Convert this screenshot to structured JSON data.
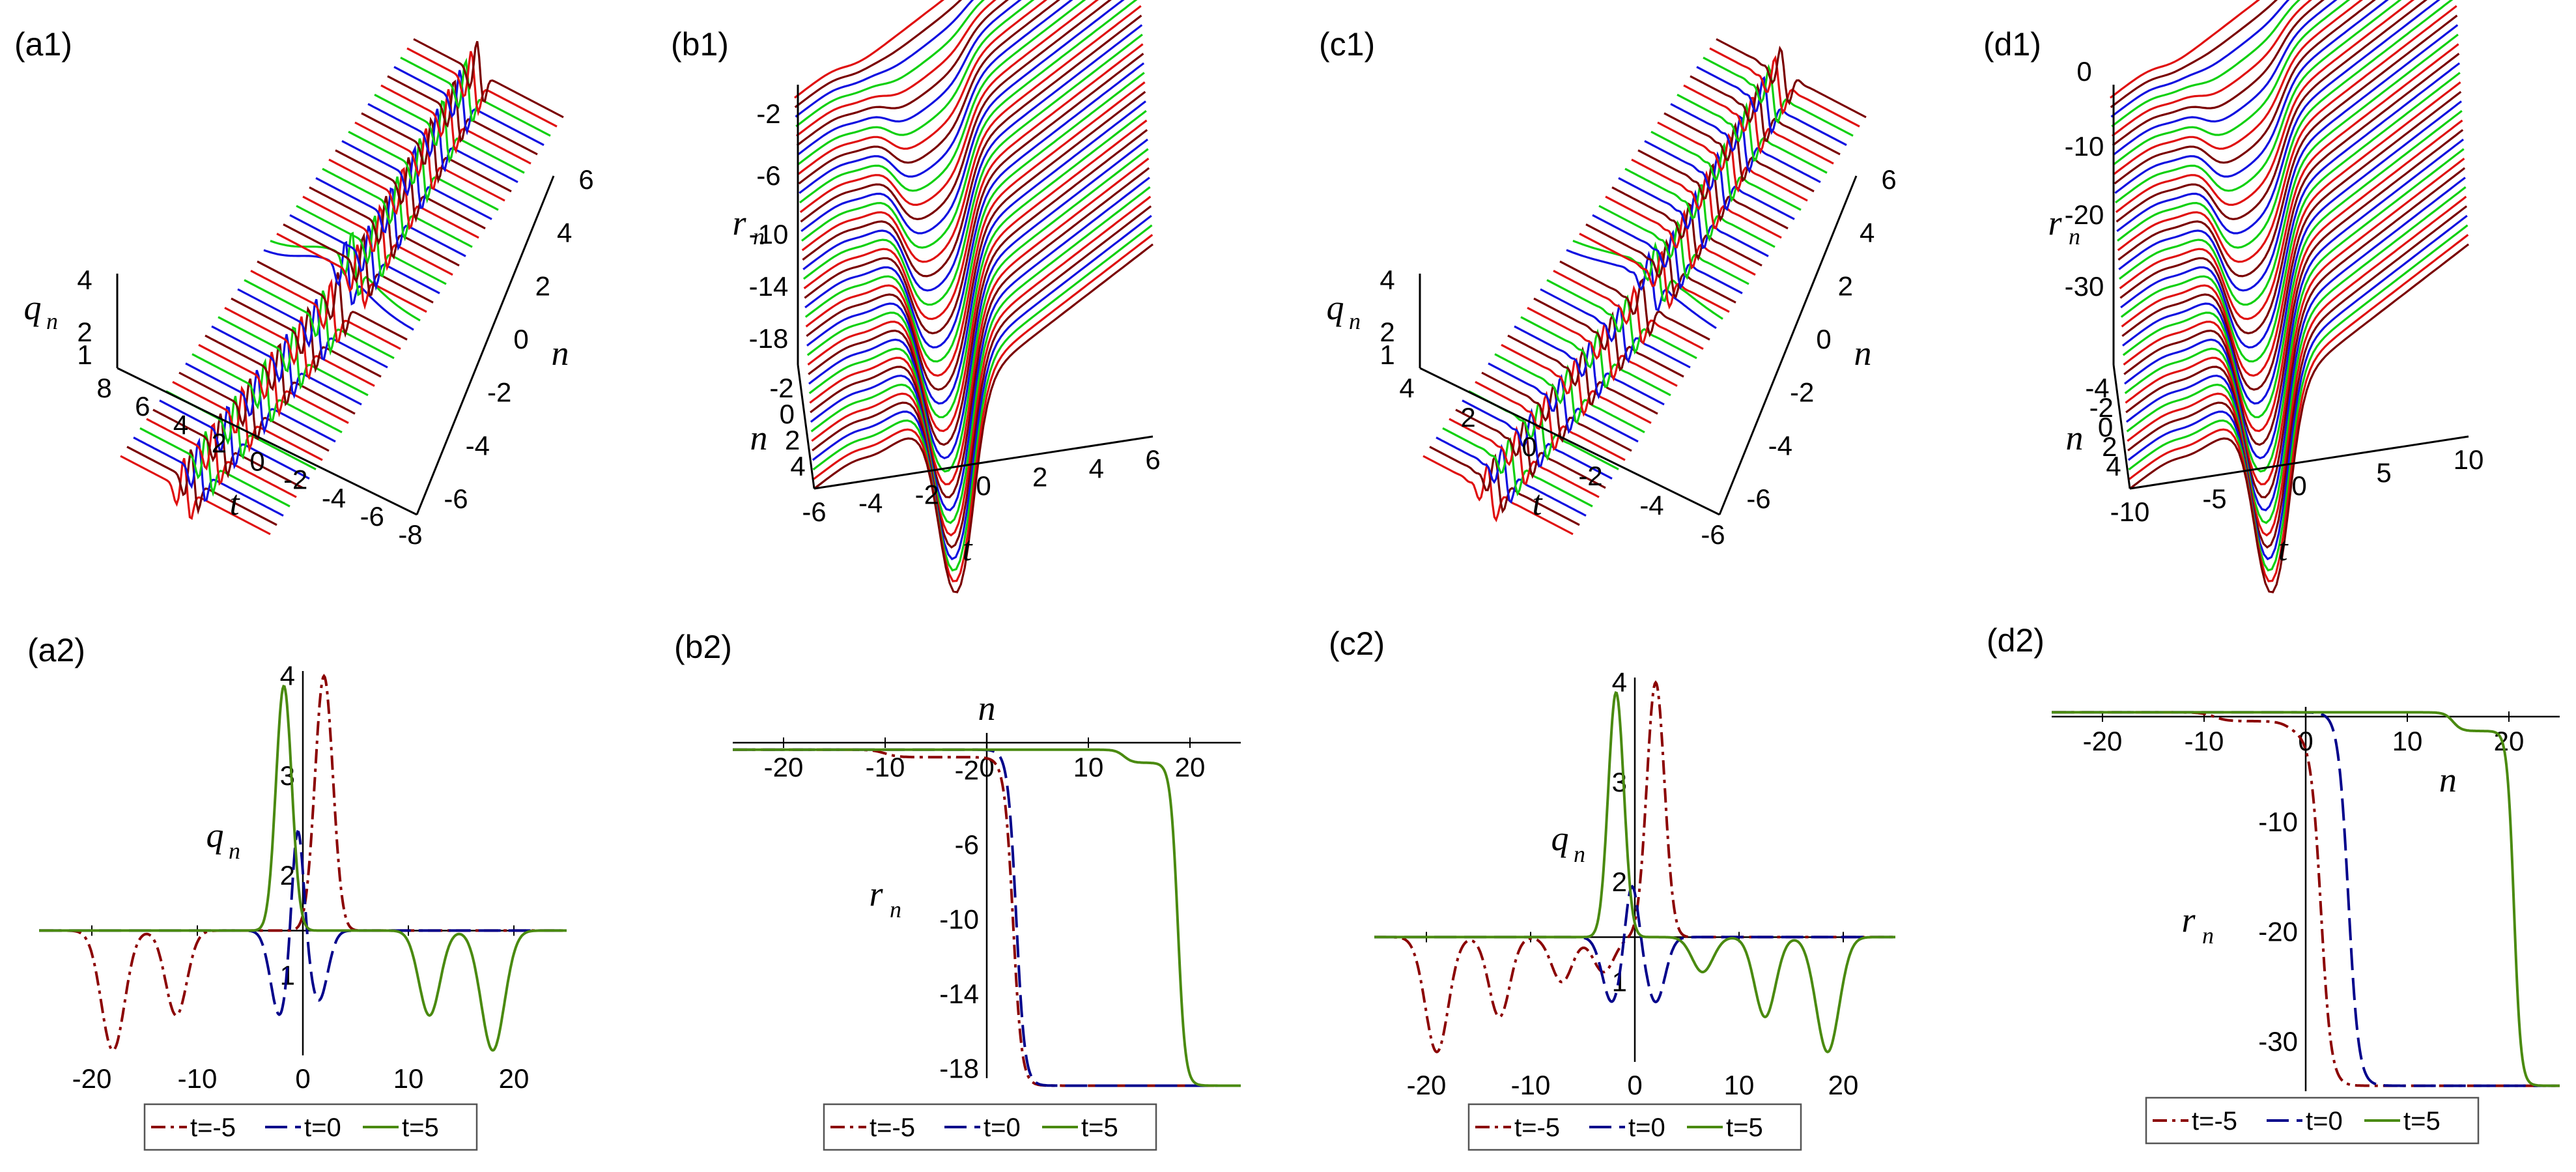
{
  "panel_labels": [
    "(a1)",
    "(b1)",
    "(c1)",
    "(d1)",
    "(a2)",
    "(b2)",
    "(c2)",
    "(d2)"
  ],
  "surface_palette": [
    "#e01010",
    "#7a0000",
    "#1010e0",
    "#10d010"
  ],
  "legend_colors": {
    "t=-5": "#8b0000",
    "t=0": "#00008b",
    "t=5": "#4a8a10"
  },
  "chart_data": [
    {
      "id": "a1",
      "type": "surface",
      "zlabel": "q",
      "zlabel_sub": "n",
      "xlabel": "t",
      "ylabel": "n",
      "z_ticks": [
        "4",
        "2",
        "1"
      ],
      "t_ticks": [
        "8",
        "6",
        "4",
        "2",
        "0",
        "-2",
        "-4",
        "-6",
        "-8"
      ],
      "n_ticks": [
        "6",
        "4",
        "2",
        "0",
        "-2",
        "-4",
        "-6"
      ]
    },
    {
      "id": "b1",
      "type": "surface",
      "zlabel": "r",
      "zlabel_sub": "n",
      "xlabel": "t",
      "ylabel": "n",
      "z_ticks": [
        "-2",
        "-6",
        "-10",
        "-14",
        "-18"
      ],
      "n_ticks": [
        "-2",
        "0",
        "2",
        "4"
      ],
      "t_ticks": [
        "-6",
        "-4",
        "-2",
        "0",
        "2",
        "4",
        "6"
      ]
    },
    {
      "id": "c1",
      "type": "surface",
      "zlabel": "q",
      "zlabel_sub": "n",
      "xlabel": "t",
      "ylabel": "n",
      "z_ticks": [
        "4",
        "2",
        "1"
      ],
      "t_ticks": [
        "4",
        "2",
        "0",
        "-2",
        "-4",
        "-6"
      ],
      "n_ticks": [
        "6",
        "4",
        "2",
        "0",
        "-2",
        "-4",
        "-6"
      ]
    },
    {
      "id": "d1",
      "type": "surface",
      "zlabel": "r",
      "zlabel_sub": "n",
      "xlabel": "t",
      "ylabel": "n",
      "z_ticks": [
        "0",
        "-10",
        "-20",
        "-30"
      ],
      "n_ticks": [
        "-4",
        "-2",
        "0",
        "2",
        "4"
      ],
      "t_ticks": [
        "-10",
        "-5",
        "0",
        "5",
        "10"
      ]
    },
    {
      "id": "a2",
      "type": "line",
      "xlabel": "n",
      "ylabel": "q",
      "ylabel_sub": "n",
      "xlim": [
        -25,
        25
      ],
      "ylim": [
        0.2,
        4.05
      ],
      "x_ticks": [
        "-20",
        "-10",
        "0",
        "10",
        "20"
      ],
      "y_ticks": [
        {
          "v": 4,
          "t": "4"
        },
        {
          "v": 3,
          "t": "3"
        },
        {
          "v": 2,
          "t": "2"
        },
        {
          "v": 1,
          "t": "1"
        }
      ],
      "baseline": 1.45,
      "series": [
        {
          "name": "t=-5",
          "style": "dashdot",
          "color": "#8b0000",
          "peaks": [
            {
              "c": 2,
              "a": 2.55,
              "w": 0.85
            },
            {
              "c": -18,
              "a": -1.2,
              "w": 1.1
            },
            {
              "c": -12,
              "a": -0.85,
              "w": 1.0
            }
          ]
        },
        {
          "name": "t=0",
          "style": "longdash",
          "color": "#00008b",
          "peaks": [
            {
              "c": -0.5,
              "a": 1.15,
              "w": 0.55
            },
            {
              "c": -2.2,
              "a": -0.85,
              "w": 0.85
            },
            {
              "c": 1.5,
              "a": -0.7,
              "w": 0.85
            }
          ]
        },
        {
          "name": "t=5",
          "style": "solid",
          "color": "#4a8a10",
          "peaks": [
            {
              "c": -1.8,
              "a": 2.45,
              "w": 0.75
            },
            {
              "c": 12,
              "a": -0.85,
              "w": 1.0
            },
            {
              "c": 18,
              "a": -1.2,
              "w": 1.1
            }
          ]
        }
      ]
    },
    {
      "id": "b2",
      "type": "line",
      "xlabel": "n",
      "ylabel": "r",
      "ylabel_sub": "n",
      "xlim": [
        -25,
        25
      ],
      "ylim": [
        -18.5,
        0
      ],
      "x_ticks": [
        "-20",
        "-10",
        "0",
        "10",
        "20"
      ],
      "y_ticks": [
        {
          "v": -2,
          "t": "-2"
        },
        {
          "v": -6,
          "t": "-6"
        },
        {
          "v": -10,
          "t": "-10"
        },
        {
          "v": -14,
          "t": "-14"
        },
        {
          "v": -18,
          "t": "-18"
        }
      ],
      "x_axis_at_top": true,
      "series": [
        {
          "name": "t=-5",
          "style": "dashdot",
          "color": "#8b0000",
          "steps": [
            {
              "c": -10,
              "h": -0.4,
              "k": 0.8
            },
            {
              "c": 2,
              "h": -0.7,
              "k": 0.8
            },
            {
              "c": 2.6,
              "h": -16.9,
              "k": 1.2
            }
          ]
        },
        {
          "name": "t=0",
          "style": "longdash",
          "color": "#00008b",
          "steps": [
            {
              "c": 2.9,
              "h": -18.0,
              "k": 1.2
            }
          ]
        },
        {
          "name": "t=5",
          "style": "solid",
          "color": "#4a8a10",
          "steps": [
            {
              "c": 13.5,
              "h": -0.7,
              "k": 1.2
            },
            {
              "c": 18.8,
              "h": -17.3,
              "k": 1.4
            }
          ]
        }
      ]
    },
    {
      "id": "c2",
      "type": "line",
      "xlabel": "n",
      "ylabel": "q",
      "ylabel_sub": "n",
      "xlim": [
        -25,
        25
      ],
      "ylim": [
        0.2,
        4.05
      ],
      "x_ticks": [
        "-20",
        "-10",
        "0",
        "10",
        "20"
      ],
      "y_ticks": [
        {
          "v": 4,
          "t": "4"
        },
        {
          "v": 3,
          "t": "3"
        },
        {
          "v": 2,
          "t": "2"
        },
        {
          "v": 1,
          "t": "1"
        }
      ],
      "baseline": 1.45,
      "series": [
        {
          "name": "t=-5",
          "style": "dashdot",
          "color": "#8b0000",
          "peaks": [
            {
              "c": 2,
              "a": 2.55,
              "w": 0.85
            },
            {
              "c": -19,
              "a": -1.15,
              "w": 1.1
            },
            {
              "c": -13,
              "a": -0.8,
              "w": 1.0
            },
            {
              "c": -7,
              "a": -0.45,
              "w": 1.0
            },
            {
              "c": -3,
              "a": -0.35,
              "w": 1.0
            }
          ]
        },
        {
          "name": "t=0",
          "style": "longdash",
          "color": "#00008b",
          "peaks": [
            {
              "c": -0.3,
              "a": 0.6,
              "w": 0.6
            },
            {
              "c": -2.2,
              "a": -0.65,
              "w": 0.9
            },
            {
              "c": 2.0,
              "a": -0.65,
              "w": 0.9
            }
          ]
        },
        {
          "name": "t=5",
          "style": "solid",
          "color": "#4a8a10",
          "peaks": [
            {
              "c": -1.8,
              "a": 2.45,
              "w": 0.75
            },
            {
              "c": 6.5,
              "a": -0.35,
              "w": 1.0
            },
            {
              "c": 12.5,
              "a": -0.8,
              "w": 1.0
            },
            {
              "c": 18.5,
              "a": -1.15,
              "w": 1.1
            }
          ]
        }
      ]
    },
    {
      "id": "d2",
      "type": "line",
      "xlabel": "n",
      "ylabel": "r",
      "ylabel_sub": "n",
      "xlim": [
        -25,
        25
      ],
      "ylim": [
        -34.5,
        0.5
      ],
      "x_ticks": [
        "-20",
        "-10",
        "0",
        "10",
        "20"
      ],
      "y_ticks": [
        {
          "v": -10,
          "t": "-10"
        },
        {
          "v": -20,
          "t": "-20"
        },
        {
          "v": -30,
          "t": "-30"
        }
      ],
      "x_axis_at_top": true,
      "series": [
        {
          "name": "t=-5",
          "style": "dashdot",
          "color": "#8b0000",
          "steps": [
            {
              "c": -9,
              "h": -0.8,
              "k": 0.8
            },
            {
              "c": -1.5,
              "h": -1.2,
              "k": 0.8
            },
            {
              "c": 1.5,
              "h": -32,
              "k": 1.0
            }
          ]
        },
        {
          "name": "t=0",
          "style": "longdash",
          "color": "#00008b",
          "steps": [
            {
              "c": 4.2,
              "h": -34.0,
              "k": 1.0
            }
          ]
        },
        {
          "name": "t=5",
          "style": "solid",
          "color": "#4a8a10",
          "steps": [
            {
              "c": 14.5,
              "h": -1.7,
              "k": 1.2
            },
            {
              "c": 20.5,
              "h": -32.3,
              "k": 1.5
            }
          ]
        }
      ]
    }
  ]
}
